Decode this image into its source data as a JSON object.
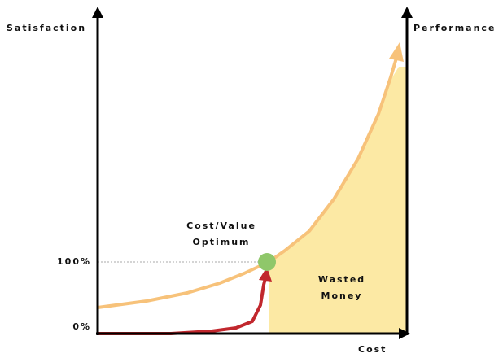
{
  "axes": {
    "left": "Satisfaction",
    "right": "Performance",
    "bottom": "Cost"
  },
  "levels": {
    "high": "100%",
    "low": "0%"
  },
  "annotations": {
    "optimum": [
      "Cost/Value",
      "Optimum"
    ],
    "waste": [
      "Wasted",
      "Money"
    ]
  }
}
